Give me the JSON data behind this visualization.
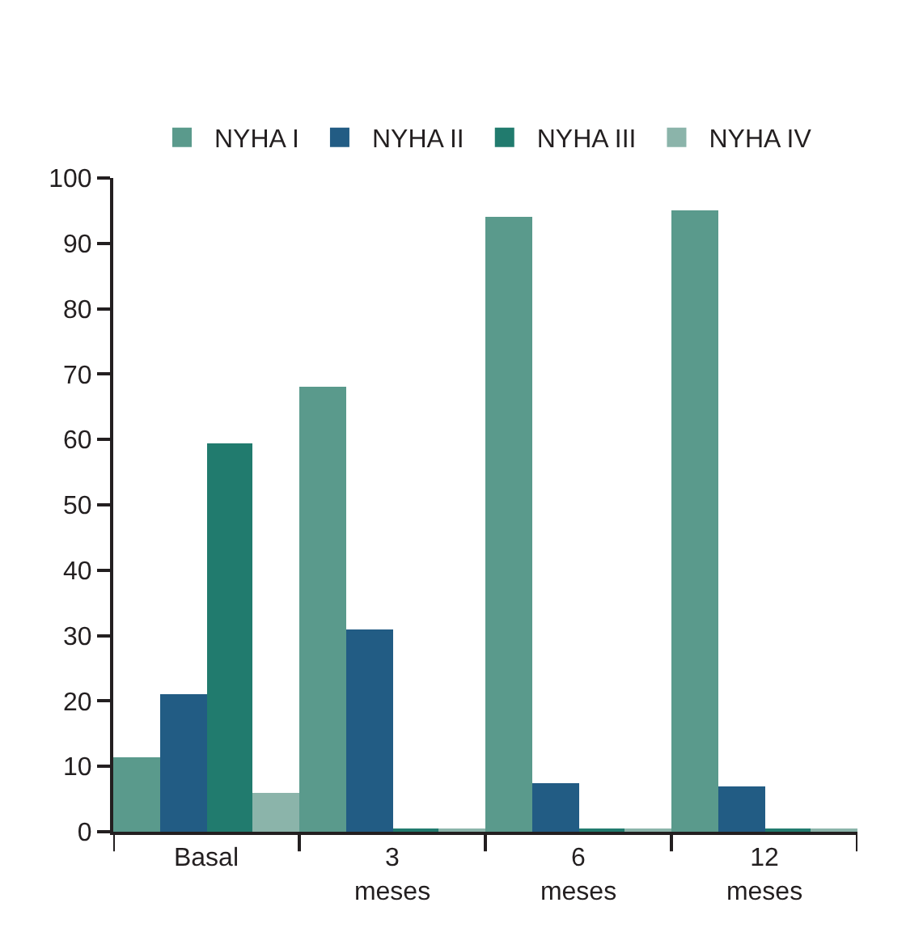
{
  "chart_data": {
    "type": "bar",
    "categories": [
      "Basal",
      "3 meses",
      "6 meses",
      "12 meses"
    ],
    "series": [
      {
        "name": "NYHA I",
        "color": "#5a9a8c",
        "values": [
          11.5,
          68,
          94,
          95
        ]
      },
      {
        "name": "NYHA II",
        "color": "#225c84",
        "values": [
          21,
          31,
          7.5,
          7
        ]
      },
      {
        "name": "NYHA III",
        "color": "#217b6e",
        "values": [
          59.5,
          0.3,
          0.3,
          0.3
        ]
      },
      {
        "name": "NYHA IV",
        "color": "#8bb4aa",
        "values": [
          6,
          0.3,
          0.3,
          0.3
        ]
      }
    ],
    "ylim": [
      0,
      100
    ],
    "yticks": [
      0,
      10,
      20,
      30,
      40,
      50,
      60,
      70,
      80,
      90,
      100
    ],
    "legend": "top"
  }
}
